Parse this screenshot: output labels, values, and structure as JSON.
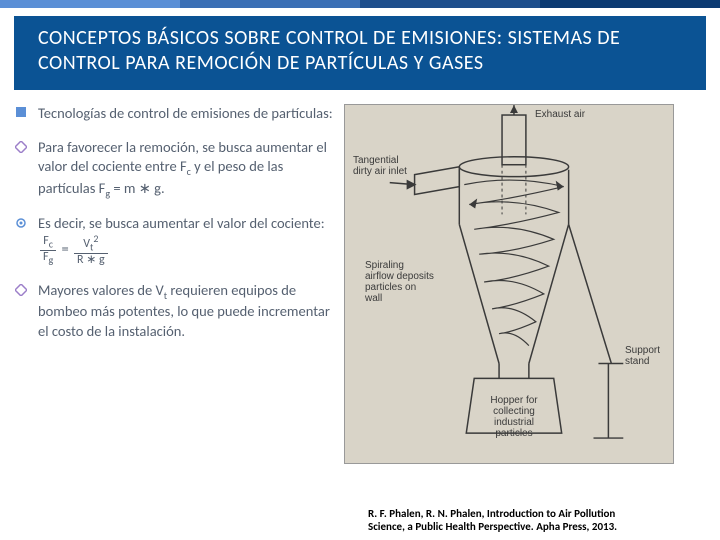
{
  "top_bar_colors": [
    "#5b8fd6",
    "#3b6fb5",
    "#1e4e8c",
    "#0b3a72"
  ],
  "header": {
    "title": "CONCEPTOS BÁSICOS SOBRE CONTROL DE EMISIONES: SISTEMAS DE CONTROL PARA REMOCIÓN DE PARTÍCULAS Y GASES",
    "bg_color": "#0b5394",
    "text_color": "#ffffff",
    "font_size_pt": 20
  },
  "bullets": [
    {
      "icon": "square",
      "icon_color": "#5b8fd6",
      "text": "Tecnologías de control de emisiones de partículas:"
    },
    {
      "icon": "diamond",
      "icon_color": "#9c7fc9",
      "html": "Para favorecer la remoción, se busca aumentar el valor del cociente entre F<span class=\"sub\">c</span> y el peso de las partículas <span class=\"formula\">F<span class=\"sub\">g</span> = m ∗ g</span>."
    },
    {
      "icon": "gear",
      "icon_color": "#5b8fd6",
      "html": "Es decir, se busca aumentar el valor del cociente: <span class=\"frac\"><span class=\"num\">F<span class=\"sub\">c</span></span><span class=\"den\">F<span class=\"sub\">g</span></span></span> = <span class=\"frac\"><span class=\"num\">V<span class=\"sub\">t</span><span class=\"sup\">2</span></span><span class=\"den\">R ∗ g</span></span>"
    },
    {
      "icon": "diamond",
      "icon_color": "#9c7fc9",
      "html": "Mayores valores de V<span class=\"sub\">t</span> requieren equipos de bombeo más potentes, lo que puede incrementar el costo de la instalación."
    }
  ],
  "diagram": {
    "bg_color": "#d9d4c8",
    "stroke_color": "#3a3a3a",
    "labels": {
      "exhaust": "Exhaust air",
      "inlet": "Tangential dirty air inlet",
      "spiral": "Spiraling airflow deposits particles on wall",
      "support": "Support stand",
      "hopper": "Hopper for collecting industrial particles"
    }
  },
  "citation": {
    "line1": "R. F. Phalen, R. N. Phalen, Introduction to Air Pollution",
    "line2": "Science, a Public Health Perspective. Apha Press, 2013."
  },
  "body_text_color": "#556070",
  "body_font_size_pt": 14.5
}
